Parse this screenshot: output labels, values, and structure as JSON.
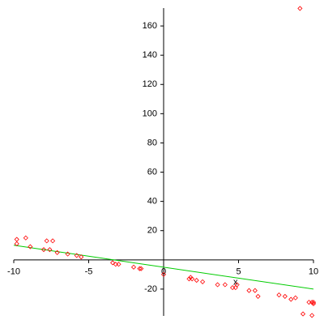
{
  "chart_data": {
    "type": "scatter",
    "x_label": "x",
    "xlim": [
      -10,
      10
    ],
    "ylim": [
      -40,
      175
    ],
    "xticks": [
      -10,
      -5,
      0,
      5,
      10
    ],
    "yticks": [
      -20,
      20,
      40,
      60,
      80,
      100,
      120,
      140,
      160
    ],
    "points": {
      "color": "#ff0000",
      "x": [
        -9.8,
        -9.8,
        -9.2,
        -8.9,
        -8,
        -7.8,
        -7.6,
        -7.4,
        -7.1,
        -6.4,
        -5.8,
        -5.5,
        -3.4,
        -3.2,
        -3,
        -2,
        -1.6,
        -1.5,
        0,
        1.7,
        1.8,
        1.9,
        2.2,
        2.6,
        3.6,
        4.1,
        4.6,
        4.8,
        4.9,
        5.7,
        6.1,
        6.3,
        7.7,
        8.1,
        8.5,
        8.8,
        9.1,
        9.3,
        9.7,
        9.9,
        10,
        9.9,
        10
      ],
      "y": [
        14,
        11,
        15,
        9,
        7,
        13,
        7,
        13,
        5,
        4,
        3,
        2,
        -2,
        -3,
        -3,
        -5,
        -6,
        -6,
        -10,
        -13,
        -12,
        -13,
        -14,
        -15,
        -17,
        -17,
        -19,
        -19,
        -17,
        -21,
        -21,
        -25,
        -24,
        -25,
        -27,
        -26,
        172,
        -37,
        -29,
        -29,
        -29,
        -38,
        -30
      ]
    },
    "fit_line": {
      "color": "#00cc00",
      "x": [
        -10,
        10
      ],
      "y": [
        10,
        -20
      ]
    }
  }
}
